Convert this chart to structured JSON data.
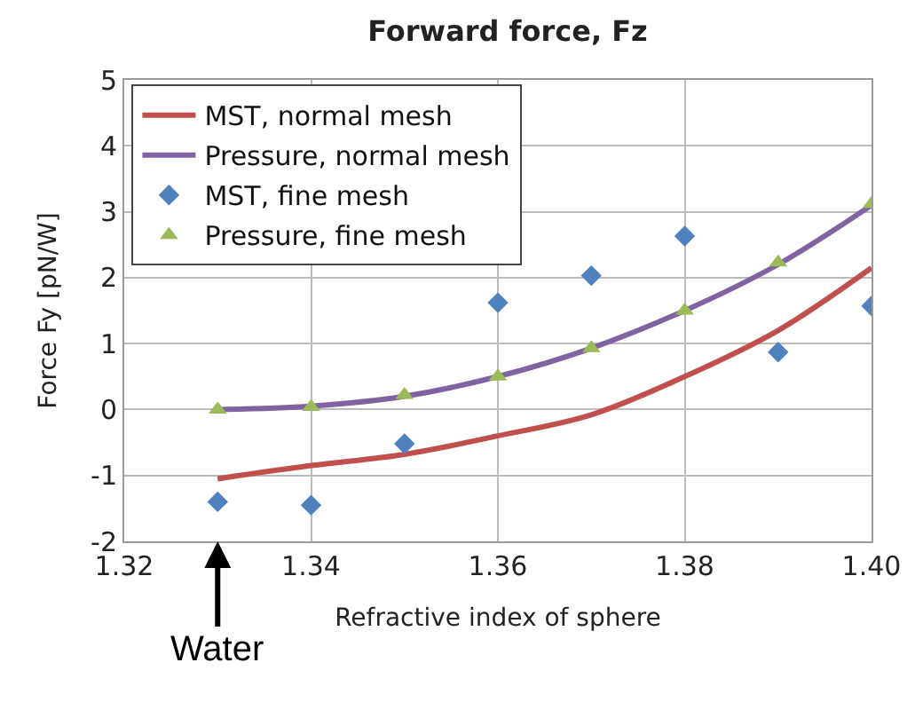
{
  "chart_data": {
    "type": "line",
    "title": "Forward force, Fz",
    "xlabel": "Refractive index of sphere",
    "ylabel": "Force Fy [pN/W]",
    "x": [
      1.33,
      1.34,
      1.35,
      1.36,
      1.37,
      1.38,
      1.39,
      1.4
    ],
    "series": [
      {
        "name": "MST, normal mesh",
        "color": "#c0504d",
        "marker": "none",
        "values": [
          -1.05,
          -0.85,
          -0.68,
          -0.4,
          -0.08,
          0.5,
          1.2,
          2.15
        ]
      },
      {
        "name": "Pressure, normal mesh",
        "color": "#8064a2",
        "marker": "none",
        "values": [
          0.0,
          0.05,
          0.2,
          0.5,
          0.93,
          1.5,
          2.2,
          3.1
        ]
      },
      {
        "name": "MST, fine mesh",
        "color": "#4f81bd",
        "type": "scatter",
        "marker": "diamond",
        "values": [
          -1.4,
          -1.45,
          -0.52,
          1.62,
          2.03,
          2.63,
          0.87,
          1.57
        ]
      },
      {
        "name": "Pressure, fine mesh",
        "color": "#9bbb59",
        "type": "scatter",
        "marker": "triangle",
        "values": [
          0.0,
          0.04,
          0.22,
          0.5,
          0.93,
          1.5,
          2.23,
          3.12
        ]
      }
    ],
    "xlim": [
      1.32,
      1.4
    ],
    "xticks": [
      {
        "value": 1.32,
        "label": "1.32"
      },
      {
        "value": 1.34,
        "label": "1.34"
      },
      {
        "value": 1.36,
        "label": "1.36"
      },
      {
        "value": 1.38,
        "label": "1.38"
      },
      {
        "value": 1.4,
        "label": "1.40"
      }
    ],
    "ylim": [
      -2,
      5
    ],
    "yticks": [
      -2,
      -1,
      0,
      1,
      2,
      3,
      4,
      5
    ],
    "grid": true,
    "legend": "top left",
    "line_style": "solid",
    "annotations": [
      "Water"
    ]
  }
}
